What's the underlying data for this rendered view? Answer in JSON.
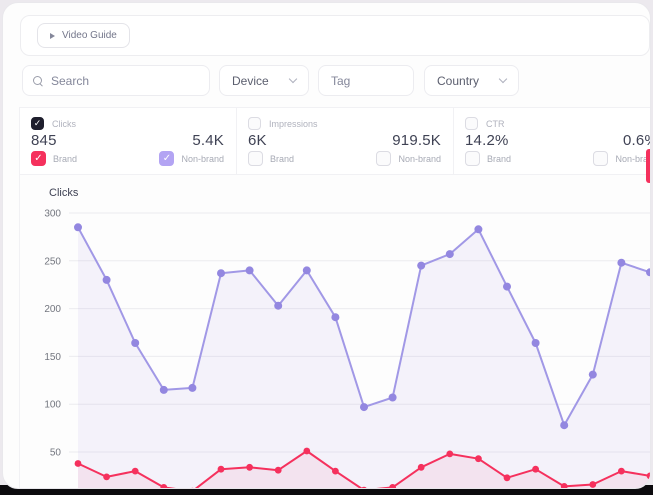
{
  "video_guide": {
    "label": "Video Guide"
  },
  "filters": {
    "search_placeholder": "Search",
    "device_label": "Device",
    "tag_placeholder": "Tag",
    "country_label": "Country"
  },
  "metrics": [
    {
      "title": "Clicks",
      "title_cb": {
        "checked": true,
        "color": "#1e1e2d"
      },
      "brand_value": "845",
      "nonbrand_value": "5.4K",
      "brand_label": "Brand",
      "nonbrand_label": "Non-brand",
      "brand_cb": {
        "checked": true,
        "color": "#f5315d"
      },
      "nonbrand_cb": {
        "checked": true,
        "color": "#b3a4f3"
      }
    },
    {
      "title": "Impressions",
      "title_cb": {
        "checked": false
      },
      "brand_value": "6K",
      "nonbrand_value": "919.5K",
      "brand_label": "Brand",
      "nonbrand_label": "Non-brand",
      "brand_cb": {
        "checked": false
      },
      "nonbrand_cb": {
        "checked": false
      }
    },
    {
      "title": "CTR",
      "title_cb": {
        "checked": false
      },
      "brand_value": "14.2%",
      "nonbrand_value": "0.6%",
      "brand_label": "Brand",
      "nonbrand_label": "Non-brand",
      "brand_cb": {
        "checked": false
      },
      "nonbrand_cb": {
        "checked": false
      }
    }
  ],
  "chart_data": {
    "type": "line",
    "title": "Clicks",
    "x": [
      1,
      2,
      3,
      4,
      5,
      6,
      7,
      8,
      9,
      10,
      11,
      12,
      13,
      14,
      15,
      16,
      17,
      18,
      19,
      20,
      21
    ],
    "x_labels_visible": false,
    "yticks": [
      300,
      250,
      200,
      150,
      100,
      50
    ],
    "ylim": [
      0,
      300
    ],
    "grid": true,
    "legend": "none",
    "series": [
      {
        "name": "Non-brand",
        "color": "#a198e6",
        "marker_color": "#9387e0",
        "fill": "rgba(150,138,226,0.09)",
        "values": [
          285,
          230,
          164,
          115,
          117,
          237,
          240,
          203,
          240,
          191,
          97,
          107,
          245,
          257,
          283,
          223,
          164,
          78,
          131,
          248,
          238
        ]
      },
      {
        "name": "Brand",
        "color": "#f5315d",
        "marker_color": "#f5315d",
        "fill": "rgba(245,49,93,0.07)",
        "values": [
          38,
          24,
          30,
          13,
          9,
          32,
          34,
          31,
          51,
          30,
          10,
          13,
          34,
          48,
          43,
          23,
          32,
          14,
          16,
          30,
          25
        ]
      }
    ]
  },
  "edge_accent_color": "#f5315d",
  "grid_color": "#ebebef",
  "tick_color": "#73767f"
}
